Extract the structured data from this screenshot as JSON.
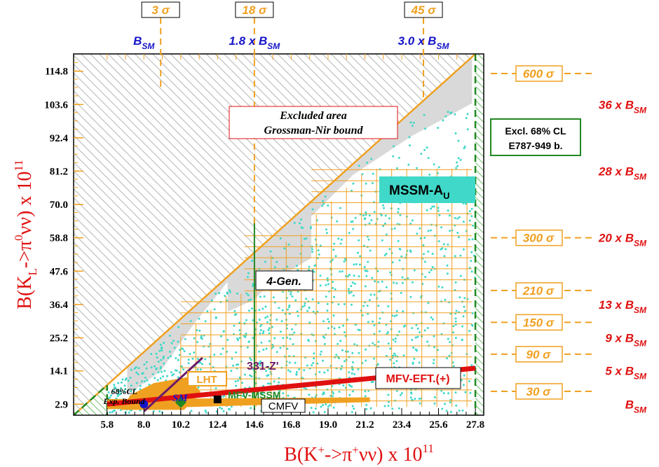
{
  "chart_data": {
    "type": "scatter",
    "xlabel": "B(K+->π+νν) x 10^11",
    "xlabel_parts": {
      "pre": "B(K",
      "sup1": "+",
      "mid": "->π",
      "sup2": "+",
      "post": "νν) x 10",
      "sup3": "11"
    },
    "ylabel": "B(KL->π0νν) x 10^11",
    "ylabel_parts": {
      "pre": "B(K",
      "sub": "L",
      "mid": "->π",
      "sup": "0",
      "post": "νν) x 10",
      "sup2": "11"
    },
    "xlim": [
      3.8,
      28.3
    ],
    "ylim": [
      -0.8,
      120.6
    ],
    "x_ticks": [
      "5.8",
      "8.0",
      "10.2",
      "12.4",
      "14.6",
      "16.8",
      "19.0",
      "21.2",
      "23.4",
      "25.6",
      "27.8"
    ],
    "y_ticks": [
      "2.9",
      "14.1",
      "25.2",
      "36.4",
      "47.6",
      "58.8",
      "70.0",
      "81.2",
      "92.4",
      "103.6",
      "114.8"
    ],
    "grid": true,
    "top_sigma_boxes": [
      {
        "text": "3",
        "unit": "σ",
        "x": 9.0
      },
      {
        "text": "18",
        "unit": "σ",
        "x": 14.6
      },
      {
        "text": "45",
        "unit": "σ",
        "x": 24.7
      }
    ],
    "top_labels": [
      {
        "text": "B",
        "sub": "SM",
        "x": 8.0
      },
      {
        "text": "1.8 x B",
        "sub": "SM",
        "x": 14.6
      },
      {
        "text": "3.0 x B",
        "sub": "SM",
        "x": 24.7
      }
    ],
    "right_sigma_boxes": [
      {
        "text": "600",
        "unit": "σ",
        "y": 114.0
      },
      {
        "text": "300",
        "unit": "σ",
        "y": 58.8
      },
      {
        "text": "210",
        "unit": "σ",
        "y": 41.1
      },
      {
        "text": "150",
        "unit": "σ",
        "y": 30.4
      },
      {
        "text": "90",
        "unit": "σ",
        "y": 19.7
      },
      {
        "text": "30",
        "unit": "σ",
        "y": 7.2
      }
    ],
    "right_labels": [
      {
        "text": "36 x B",
        "sub": "SM",
        "y": 103.6
      },
      {
        "text": "28 x B",
        "sub": "SM",
        "y": 81.2
      },
      {
        "text": "20 x B",
        "sub": "SM",
        "y": 58.8
      },
      {
        "text": "13 x B",
        "sub": "SM",
        "y": 36.4
      },
      {
        "text": "9 x B",
        "sub": "SM",
        "y": 25.2
      },
      {
        "text": "5 x B",
        "sub": "SM",
        "y": 14.1
      },
      {
        "text": "B",
        "sub": "SM",
        "y": 2.9
      }
    ],
    "annotations": {
      "excluded_line1": "Excluded  area",
      "excluded_line2": "Grossman-Nir bound",
      "excl_cl_line1": "Excl.  68% CL",
      "excl_cl_line2": "E787-949 b.",
      "mssm": "MSSM-A",
      "mssm_sub": "U",
      "four_gen": "4-Gen.",
      "mfv_eft": "MFV-EFT.(+)",
      "lht": "LHT",
      "z331": "331-Z'",
      "mfv_mssm": "MFV-MSSM",
      "cmfv": "CMFV",
      "sm": "SM",
      "cl_line1": "68%CL",
      "cl_line2": "Exp. Bound"
    },
    "points": {
      "SM": [
        8.0,
        2.9
      ],
      "MFV-MSSM": [
        10.2,
        3.5
      ],
      "CMFV": [
        12.4,
        4.5
      ]
    },
    "grossman_nir_bound": [
      [
        3.8,
        -0.8
      ],
      [
        27.8,
        120.6
      ]
    ],
    "mfv_eft_line": [
      [
        5.8,
        2.9
      ],
      [
        27.8,
        15.0
      ]
    ],
    "e787_949_excluded_x_min": 27.8,
    "exp_68cl_boundary_x": 5.8,
    "four_gen_line_x": 14.6,
    "colors": {
      "axis_title": "#e01010",
      "top_labels": "#1515c8",
      "sigma": "#f0a020",
      "mssm_scatter": "#40d8c8",
      "excl_green": "#208820",
      "mfv_eft": "#e01010",
      "z331": "#6a1a6a",
      "four_gen": "#208820"
    }
  }
}
